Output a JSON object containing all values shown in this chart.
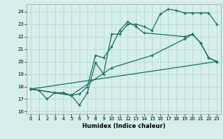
{
  "xlabel": "Humidex (Indice chaleur)",
  "bg_color": "#d6efec",
  "grid_color": "#aed4cf",
  "line_color": "#1a6b60",
  "xlim": [
    -0.5,
    23.5
  ],
  "ylim": [
    15.8,
    24.6
  ],
  "yticks": [
    16,
    17,
    18,
    19,
    20,
    21,
    22,
    23,
    24
  ],
  "xticks": [
    0,
    1,
    2,
    3,
    4,
    5,
    6,
    7,
    8,
    9,
    10,
    11,
    12,
    13,
    14,
    15,
    16,
    17,
    18,
    19,
    20,
    21,
    22,
    23
  ],
  "line1_x": [
    0,
    1,
    2,
    3,
    4,
    5,
    6,
    7,
    8,
    9,
    10,
    11,
    12,
    13,
    14,
    15,
    16,
    17,
    18,
    19,
    20,
    21,
    22,
    23
  ],
  "line1_y": [
    17.8,
    17.7,
    17.0,
    17.5,
    17.5,
    17.3,
    16.5,
    17.5,
    19.9,
    19.0,
    22.2,
    22.2,
    23.0,
    23.0,
    22.8,
    22.5,
    23.8,
    24.2,
    24.1,
    23.9,
    23.9,
    23.9,
    23.9,
    23.0
  ],
  "line2_x": [
    0,
    5,
    6,
    7,
    8,
    9,
    10,
    11,
    12,
    13,
    14,
    19,
    20,
    21,
    22,
    23
  ],
  "line2_y": [
    17.8,
    17.3,
    17.4,
    18.0,
    20.5,
    20.3,
    21.2,
    22.5,
    23.2,
    22.8,
    22.3,
    22.0,
    22.2,
    21.5,
    20.3,
    20.0
  ],
  "line3_x": [
    0,
    23
  ],
  "line3_y": [
    17.8,
    20.0
  ],
  "line4_x": [
    0,
    5,
    10,
    15,
    19,
    20,
    21,
    22,
    23
  ],
  "line4_y": [
    17.8,
    17.3,
    19.5,
    20.5,
    21.8,
    22.2,
    21.5,
    20.3,
    20.0
  ]
}
